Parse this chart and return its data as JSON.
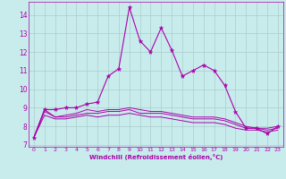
{
  "xlabel": "Windchill (Refroidissement éolien,°C)",
  "xlim": [
    -0.5,
    23.5
  ],
  "ylim": [
    6.9,
    14.7
  ],
  "yticks": [
    7,
    8,
    9,
    10,
    11,
    12,
    13,
    14
  ],
  "xticks": [
    0,
    1,
    2,
    3,
    4,
    5,
    6,
    7,
    8,
    9,
    10,
    11,
    12,
    13,
    14,
    15,
    16,
    17,
    18,
    19,
    20,
    21,
    22,
    23
  ],
  "bg_color": "#c8ecec",
  "grid_color": "#aacccc",
  "line_color": "#aa00aa",
  "series": [
    [
      7.4,
      8.9,
      8.9,
      9.0,
      9.0,
      9.2,
      9.3,
      10.7,
      11.1,
      14.4,
      12.6,
      12.0,
      13.3,
      12.1,
      10.7,
      11.0,
      11.3,
      11.0,
      10.2,
      8.8,
      7.9,
      7.9,
      7.6,
      8.0
    ],
    [
      7.4,
      8.9,
      8.5,
      8.6,
      8.7,
      8.9,
      8.8,
      8.9,
      8.9,
      9.0,
      8.9,
      8.8,
      8.8,
      8.7,
      8.6,
      8.5,
      8.5,
      8.5,
      8.4,
      8.2,
      8.0,
      7.9,
      7.9,
      8.0
    ],
    [
      7.4,
      8.8,
      8.5,
      8.5,
      8.6,
      8.7,
      8.7,
      8.8,
      8.8,
      8.9,
      8.7,
      8.7,
      8.7,
      8.6,
      8.5,
      8.4,
      8.4,
      8.4,
      8.3,
      8.1,
      7.9,
      7.9,
      7.8,
      7.9
    ],
    [
      7.4,
      8.6,
      8.4,
      8.4,
      8.5,
      8.6,
      8.5,
      8.6,
      8.6,
      8.7,
      8.6,
      8.5,
      8.5,
      8.4,
      8.3,
      8.2,
      8.2,
      8.2,
      8.1,
      7.9,
      7.8,
      7.8,
      7.7,
      7.8
    ]
  ]
}
